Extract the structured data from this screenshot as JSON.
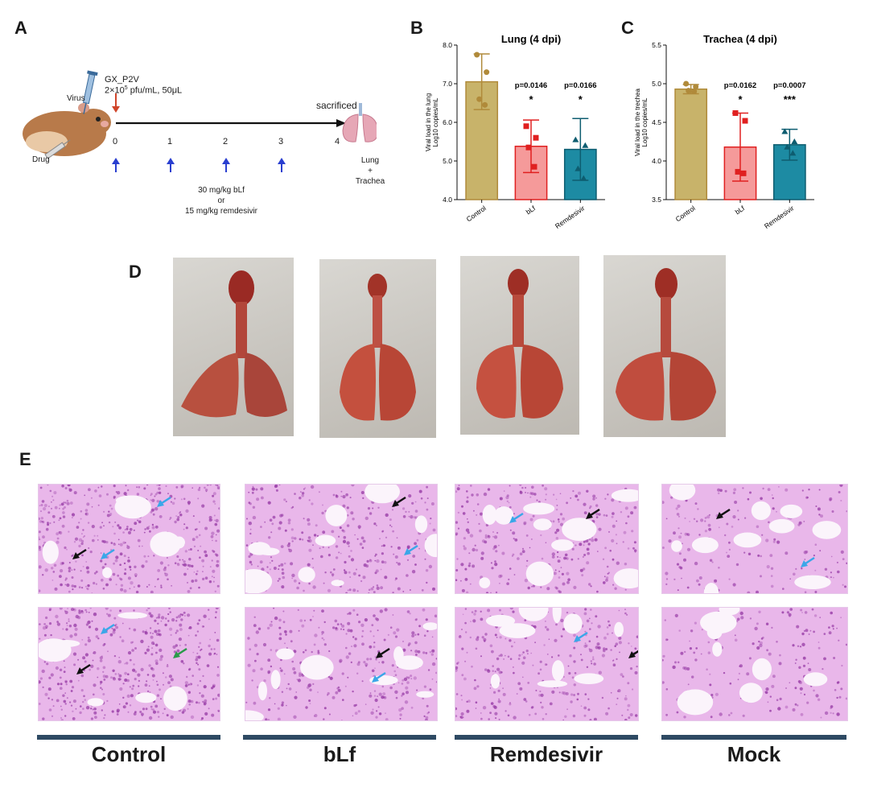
{
  "panels": {
    "a": "A",
    "b": "B",
    "c": "C",
    "d": "D",
    "e": "E"
  },
  "schematic": {
    "virus_label": "Virus",
    "drug_label": "Drug",
    "strain": "GX_P2V",
    "dose_main": "2×10",
    "dose_exp": "5",
    "dose_rest": " pfu/mL, 50μL",
    "sacrificed": "sacrificed",
    "days": [
      "0",
      "1",
      "2",
      "3",
      "4"
    ],
    "treatment_line1": "30 mg/kg   bLf",
    "treatment_line2": "or",
    "treatment_line3": "15 mg/kg remdesivir",
    "organ_line1": "Lung",
    "organ_line2": "+",
    "organ_line3": "Trachea"
  },
  "colors": {
    "control": "#c8b36a",
    "control_edge": "#b08a3a",
    "blf": "#f59a9a",
    "blf_edge": "#e02020",
    "remdesivir": "#1d8ba3",
    "remdesivir_edge": "#0e5d70",
    "histo_base": "#e9b7ea",
    "histo_cell": "#9a3fa8",
    "rule": "#2e4a63"
  },
  "chart_data": [
    {
      "type": "bar",
      "title": "Lung (4 dpi)",
      "ylabel_line1": "Viral load in the lung",
      "ylabel_line2": "Log10 copies/mL",
      "categories": [
        "Control",
        "bLf",
        "Remdesivir"
      ],
      "values": [
        7.05,
        5.38,
        5.3
      ],
      "errors": [
        0.72,
        0.68,
        0.8
      ],
      "points": [
        [
          7.75,
          7.3,
          6.6,
          6.45
        ],
        [
          5.9,
          5.6,
          5.35,
          4.85
        ],
        [
          5.55,
          5.4,
          4.8,
          4.55
        ]
      ],
      "ylim": [
        4.0,
        8.0
      ],
      "yticks": [
        "4.0",
        "5.0",
        "6.0",
        "7.0",
        "8.0"
      ],
      "pvalues": [
        "",
        "p=0.0146",
        "p=0.0166"
      ],
      "stars": [
        "",
        "*",
        "*"
      ]
    },
    {
      "type": "bar",
      "title": "Trachea (4 dpi)",
      "ylabel_line1": "Viral load in the trechea",
      "ylabel_line2": "Log10 copies/mL",
      "categories": [
        "Control",
        "bLf",
        "Remdesivir"
      ],
      "values": [
        4.93,
        4.18,
        4.21
      ],
      "errors": [
        0.06,
        0.44,
        0.2
      ],
      "points": [
        [
          5.0,
          4.96,
          4.91,
          4.9
        ],
        [
          4.62,
          4.52,
          3.86,
          3.84
        ],
        [
          4.38,
          4.25,
          4.18,
          4.1
        ]
      ],
      "ylim": [
        3.5,
        5.5
      ],
      "yticks": [
        "3.5",
        "4.0",
        "4.5",
        "5.0",
        "5.5"
      ],
      "pvalues": [
        "",
        "p=0.0162",
        "p=0.0007"
      ],
      "stars": [
        "",
        "*",
        "***"
      ]
    }
  ],
  "groups": [
    "Control",
    "bLf",
    "Remdesivir",
    "Mock"
  ]
}
